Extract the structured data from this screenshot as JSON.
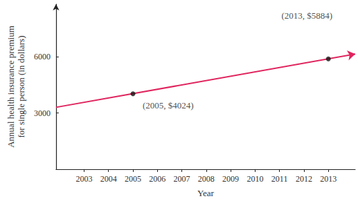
{
  "chart_data": {
    "type": "line",
    "y_label": "Annual health insurance premium\nfor single person (in dollars)",
    "x_label": "Year",
    "x": [
      2001.85,
      2014.1
    ],
    "values": [
      3300,
      6140
    ],
    "color": "#e0245e",
    "xlim": [
      2001.85,
      2014.1
    ],
    "xticks": [
      2003,
      2004,
      2005,
      2006,
      2007,
      2008,
      2009,
      2010,
      2011,
      2012,
      2013
    ],
    "ylim": [
      0,
      8800
    ],
    "yticks": [
      3000,
      6000
    ],
    "grid": false,
    "annotations": [
      {
        "x": 2005,
        "y": 4024,
        "text": "(2005, $4024)"
      },
      {
        "x": 2013,
        "y": 5884,
        "text": "(2013, $5884)"
      }
    ]
  }
}
